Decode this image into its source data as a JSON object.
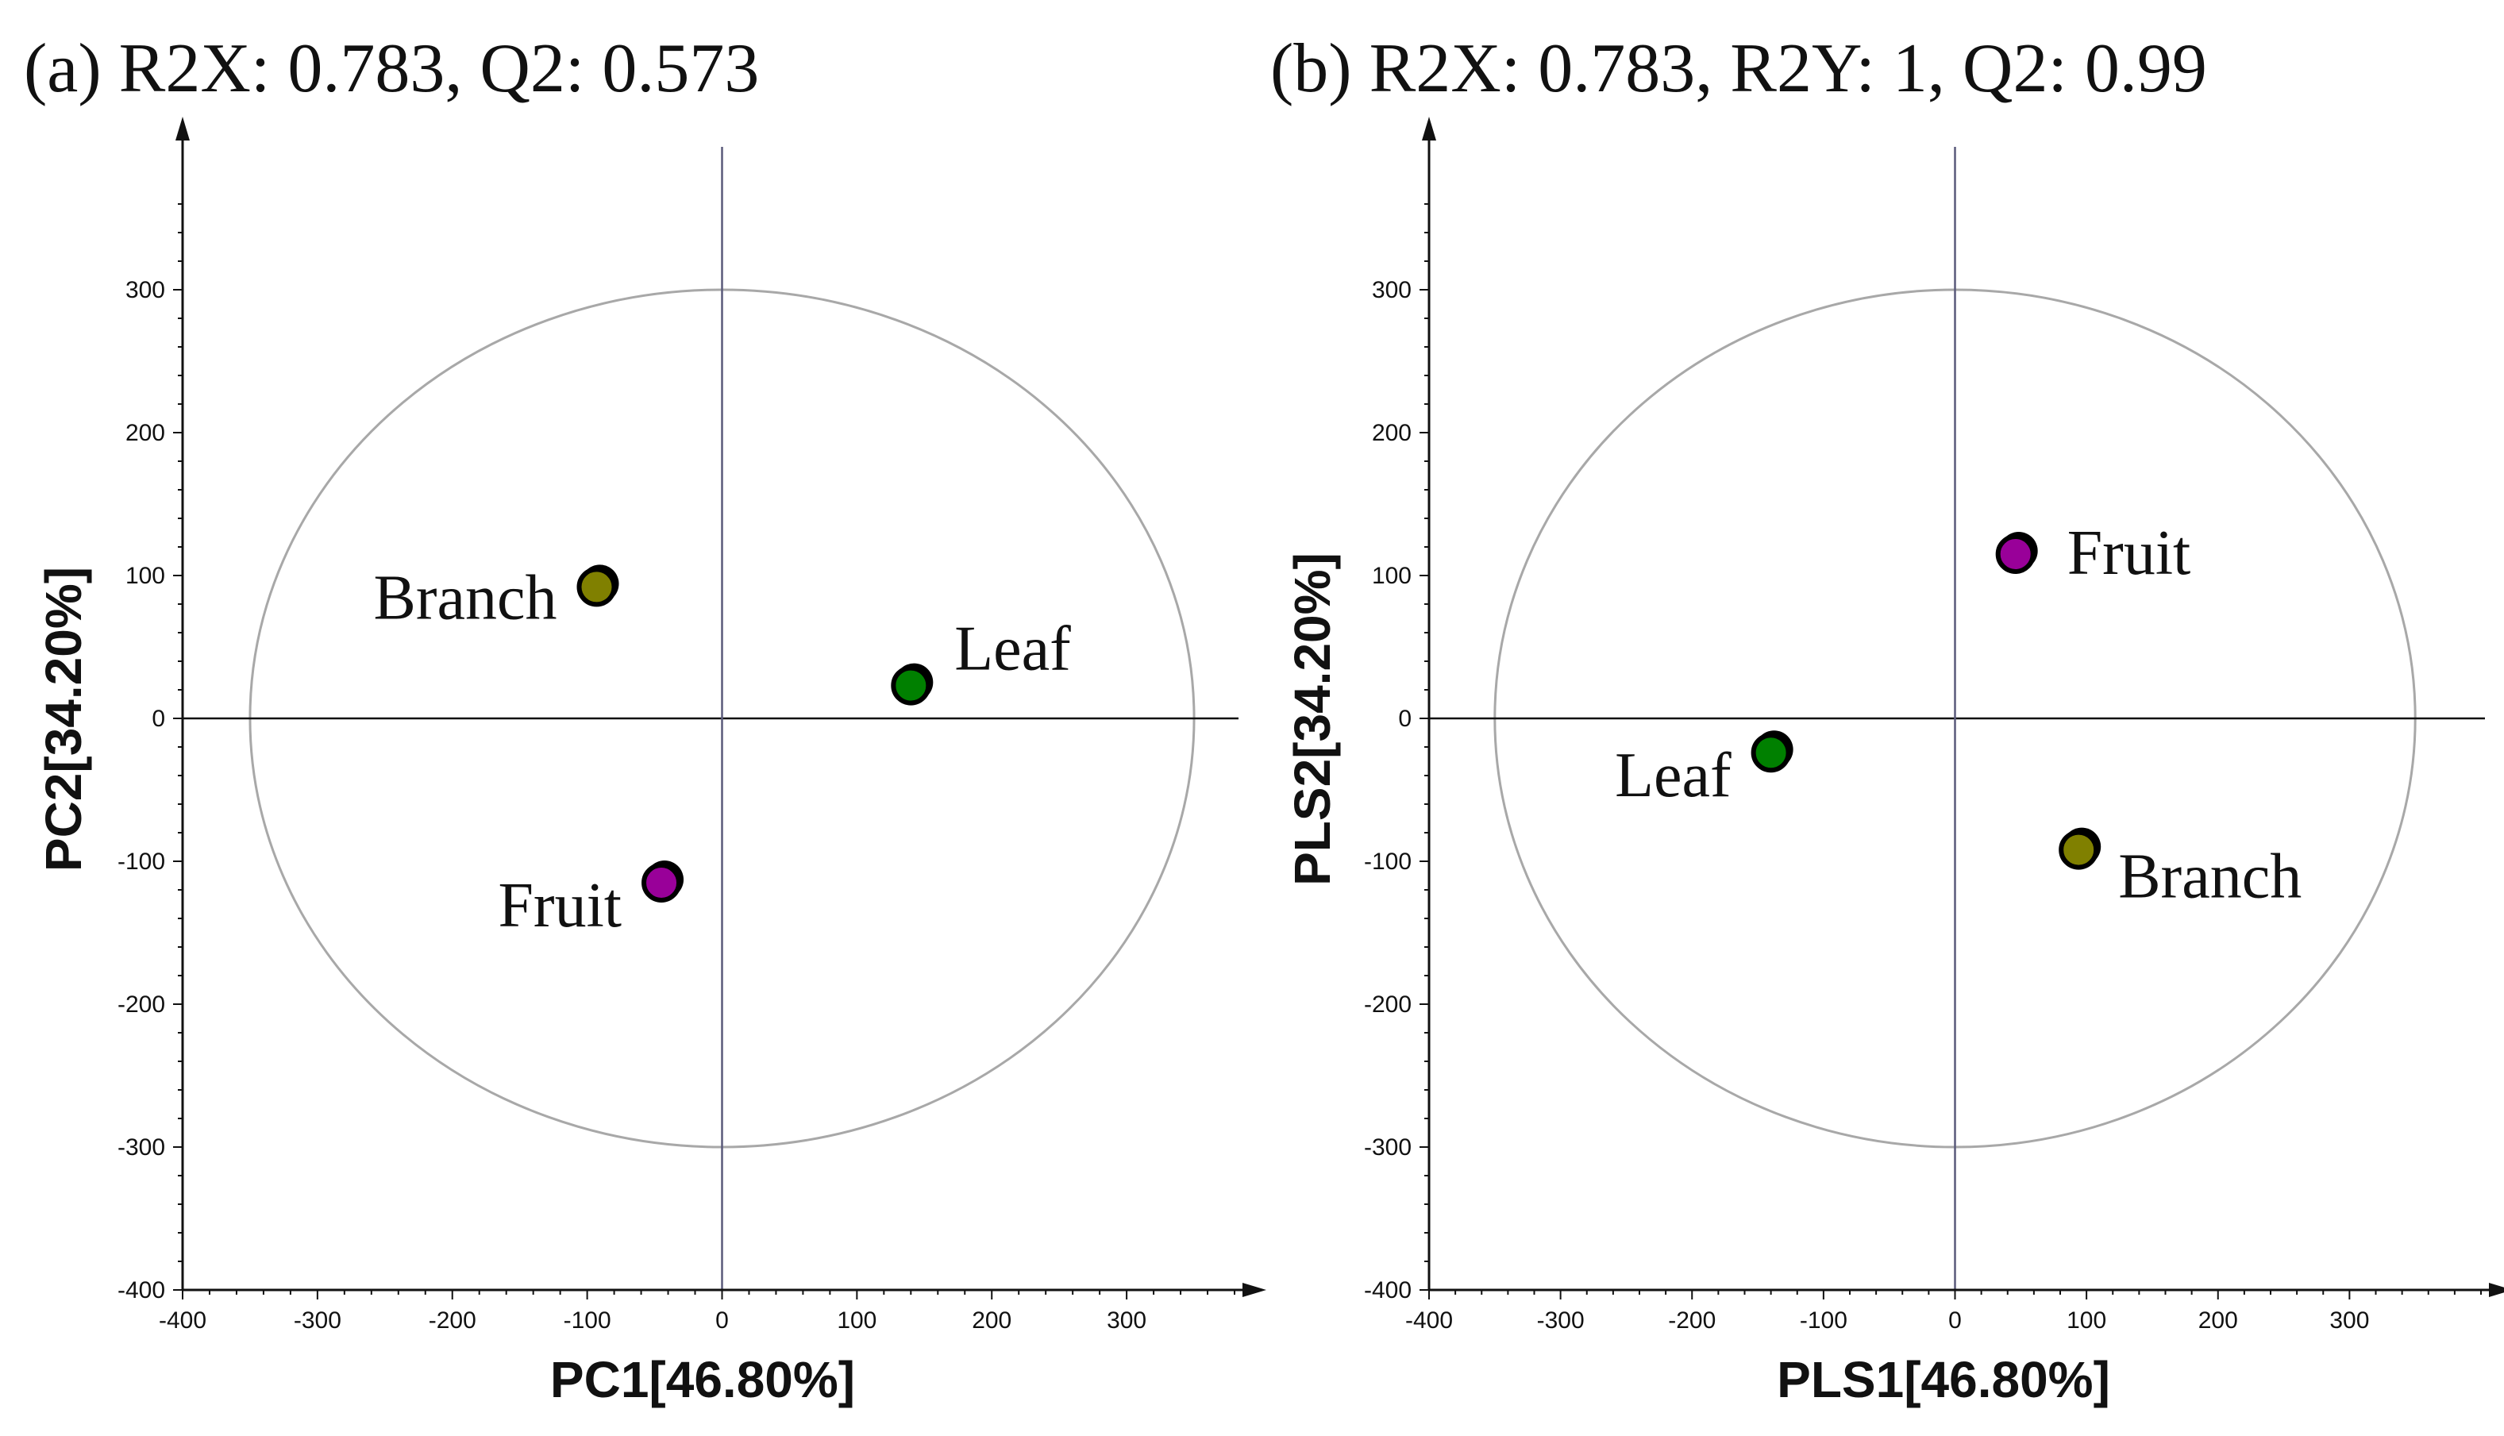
{
  "chart_data": [
    {
      "type": "scatter",
      "title": "(a) R2X: 0.783, Q2: 0.573",
      "xlabel": "PC1[46.80%]",
      "ylabel": "PC2[34.20%]",
      "xlim": [
        -400,
        380
      ],
      "ylim": [
        -400,
        400
      ],
      "xticks": [
        -400,
        -300,
        -200,
        -100,
        0,
        100,
        200,
        300
      ],
      "yticks": [
        -400,
        -300,
        -200,
        -100,
        0,
        100,
        200,
        300
      ],
      "ellipse": {
        "rx": 350,
        "ry": 300
      },
      "points": [
        {
          "name": "Branch",
          "x": -93,
          "y": 92,
          "color": "#808000",
          "label_side": "left"
        },
        {
          "name": "Leaf",
          "x": 140,
          "y": 23,
          "color": "#008000",
          "label_side": "right-up"
        },
        {
          "name": "Fruit",
          "x": -45,
          "y": -115,
          "color": "#990099",
          "label_side": "left-down"
        }
      ]
    },
    {
      "type": "scatter",
      "title": "(b) R2X: 0.783, R2Y: 1, Q2: 0.99",
      "xlabel": "PLS1[46.80%]",
      "ylabel": "PLS2[34.20%]",
      "xlim": [
        -400,
        400
      ],
      "ylim": [
        -400,
        400
      ],
      "xticks": [
        -400,
        -300,
        -200,
        -100,
        0,
        100,
        200,
        300
      ],
      "yticks": [
        -400,
        -300,
        -200,
        -100,
        0,
        100,
        200,
        300
      ],
      "ellipse": {
        "rx": 350,
        "ry": 300
      },
      "points": [
        {
          "name": "Fruit",
          "x": 46,
          "y": 115,
          "color": "#990099",
          "label_side": "right"
        },
        {
          "name": "Leaf",
          "x": -140,
          "y": -24,
          "color": "#008000",
          "label_side": "left-down"
        },
        {
          "name": "Branch",
          "x": 94,
          "y": -92,
          "color": "#808000",
          "label_side": "right-down"
        }
      ]
    }
  ]
}
